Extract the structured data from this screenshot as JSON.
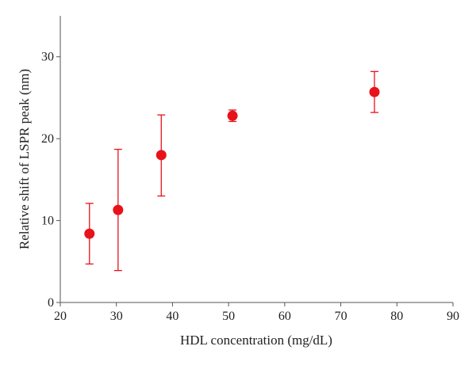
{
  "chart_data": {
    "type": "scatter",
    "title": "",
    "xlabel": "HDL concentration (mg/dL)",
    "ylabel": "Relative shift of LSPR peak (nm)",
    "xlim": [
      20,
      90
    ],
    "ylim": [
      0,
      35
    ],
    "xticks": [
      20,
      30,
      40,
      50,
      60,
      70,
      80,
      90
    ],
    "yticks": [
      0,
      10,
      20,
      30
    ],
    "grid": false,
    "legend": "none",
    "series": [
      {
        "color": "#e8121b",
        "points": [
          {
            "x": 25.2,
            "y": 8.4,
            "err_low": 4.7,
            "err_high": 12.1
          },
          {
            "x": 30.3,
            "y": 11.3,
            "err_low": 3.9,
            "err_high": 18.7
          },
          {
            "x": 38.0,
            "y": 18.0,
            "err_low": 13.0,
            "err_high": 22.9
          },
          {
            "x": 50.7,
            "y": 22.8,
            "err_low": 22.1,
            "err_high": 23.5
          },
          {
            "x": 76.0,
            "y": 25.7,
            "err_low": 23.2,
            "err_high": 28.2
          }
        ]
      }
    ]
  }
}
